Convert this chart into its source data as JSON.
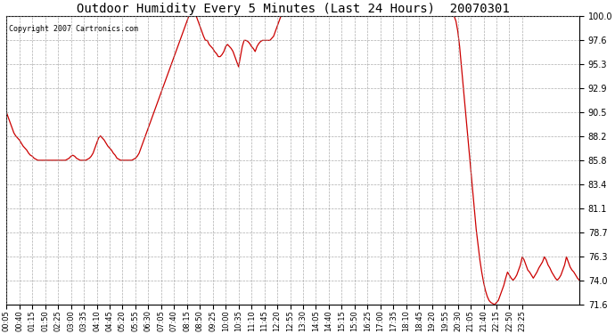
{
  "title": "Outdoor Humidity Every 5 Minutes (Last 24 Hours)  20070301",
  "copyright": "Copyright 2007 Cartronics.com",
  "background_color": "#ffffff",
  "line_color": "#cc0000",
  "grid_color": "#999999",
  "ylim": [
    71.6,
    100.0
  ],
  "yticks": [
    71.6,
    74.0,
    76.3,
    78.7,
    81.1,
    83.4,
    85.8,
    88.2,
    90.5,
    92.9,
    95.3,
    97.6,
    100.0
  ],
  "x_labels": [
    "00:05",
    "00:40",
    "01:15",
    "01:50",
    "02:25",
    "03:00",
    "03:35",
    "04:10",
    "04:45",
    "05:20",
    "05:55",
    "06:30",
    "07:05",
    "07:40",
    "08:15",
    "08:50",
    "09:25",
    "10:00",
    "10:35",
    "11:10",
    "11:45",
    "12:20",
    "12:55",
    "13:30",
    "14:05",
    "14:40",
    "15:15",
    "15:50",
    "16:25",
    "17:00",
    "17:35",
    "18:10",
    "18:45",
    "19:20",
    "19:55",
    "20:30",
    "21:05",
    "21:40",
    "22:15",
    "22:50",
    "23:25"
  ],
  "humidity": [
    90.5,
    90.0,
    89.5,
    89.0,
    88.5,
    88.2,
    88.0,
    87.8,
    87.5,
    87.2,
    87.0,
    86.8,
    86.5,
    86.3,
    86.2,
    86.0,
    85.9,
    85.8,
    85.8,
    85.8,
    85.8,
    85.8,
    85.8,
    85.8,
    85.8,
    85.8,
    85.8,
    85.8,
    85.8,
    85.8,
    85.8,
    85.8,
    85.8,
    85.9,
    86.0,
    86.2,
    86.3,
    86.2,
    86.0,
    85.9,
    85.8,
    85.8,
    85.8,
    85.8,
    85.9,
    86.0,
    86.2,
    86.5,
    87.0,
    87.5,
    88.0,
    88.2,
    88.0,
    87.8,
    87.5,
    87.2,
    87.0,
    86.8,
    86.5,
    86.3,
    86.0,
    85.9,
    85.8,
    85.8,
    85.8,
    85.8,
    85.8,
    85.8,
    85.8,
    85.9,
    86.0,
    86.2,
    86.5,
    87.0,
    87.5,
    88.0,
    88.5,
    89.0,
    89.5,
    90.0,
    90.5,
    91.0,
    91.5,
    92.0,
    92.5,
    93.0,
    93.5,
    94.0,
    94.5,
    95.0,
    95.5,
    96.0,
    96.5,
    97.0,
    97.5,
    98.0,
    98.5,
    99.0,
    99.5,
    100.0,
    100.0,
    100.0,
    100.0,
    100.0,
    99.5,
    99.0,
    98.5,
    98.0,
    97.6,
    97.6,
    97.2,
    97.0,
    96.8,
    96.5,
    96.3,
    96.0,
    96.0,
    96.2,
    96.5,
    97.0,
    97.2,
    97.0,
    96.8,
    96.5,
    96.0,
    95.5,
    95.0,
    96.0,
    97.0,
    97.6,
    97.6,
    97.5,
    97.3,
    97.0,
    96.8,
    96.5,
    97.0,
    97.3,
    97.5,
    97.6,
    97.6,
    97.6,
    97.6,
    97.6,
    97.8,
    98.0,
    98.5,
    99.0,
    99.5,
    100.0,
    100.0,
    100.0,
    100.0,
    100.0,
    100.0,
    100.0,
    100.0,
    100.0,
    100.0,
    100.0,
    100.0,
    100.0,
    100.0,
    100.0,
    100.0,
    100.0,
    100.0,
    100.0,
    100.0,
    100.0,
    100.0,
    100.0,
    100.0,
    100.0,
    100.0,
    100.0,
    100.0,
    100.0,
    100.0,
    100.0,
    100.0,
    100.0,
    100.0,
    100.0,
    100.0,
    100.0,
    100.0,
    100.0,
    100.0,
    100.0,
    100.0,
    100.0,
    100.0,
    100.0,
    100.0,
    100.0,
    100.0,
    100.0,
    100.0,
    100.0,
    100.0,
    100.0,
    100.0,
    100.0,
    100.0,
    100.0,
    100.0,
    100.0,
    100.0,
    100.0,
    100.0,
    100.0,
    100.0,
    100.0,
    100.0,
    100.0,
    100.0,
    100.0,
    100.0,
    100.0,
    100.0,
    100.0,
    100.0,
    100.0,
    100.0,
    100.0,
    100.0,
    100.0,
    100.0,
    100.0,
    100.0,
    100.0,
    100.0,
    100.0,
    100.0,
    100.0,
    100.0,
    100.0,
    100.0,
    100.0,
    100.0,
    100.0,
    100.0,
    100.0,
    99.5,
    98.5,
    97.0,
    95.0,
    93.0,
    91.0,
    89.0,
    87.0,
    85.0,
    83.0,
    81.0,
    79.0,
    77.5,
    76.0,
    74.8,
    73.8,
    73.0,
    72.4,
    72.0,
    71.8,
    71.7,
    71.6,
    71.8,
    72.0,
    72.5,
    73.0,
    73.5,
    74.2,
    74.8,
    74.5,
    74.2,
    74.0,
    74.2,
    74.5,
    75.0,
    75.5,
    76.3,
    76.0,
    75.5,
    75.0,
    74.8,
    74.5,
    74.2,
    74.5,
    74.8,
    75.2,
    75.5,
    75.8,
    76.3,
    76.0,
    75.5,
    75.2,
    74.8,
    74.5,
    74.2,
    74.0,
    74.2,
    74.5,
    75.0,
    75.5,
    76.3,
    75.8,
    75.3,
    75.0,
    74.8,
    74.5,
    74.2,
    74.0
  ]
}
